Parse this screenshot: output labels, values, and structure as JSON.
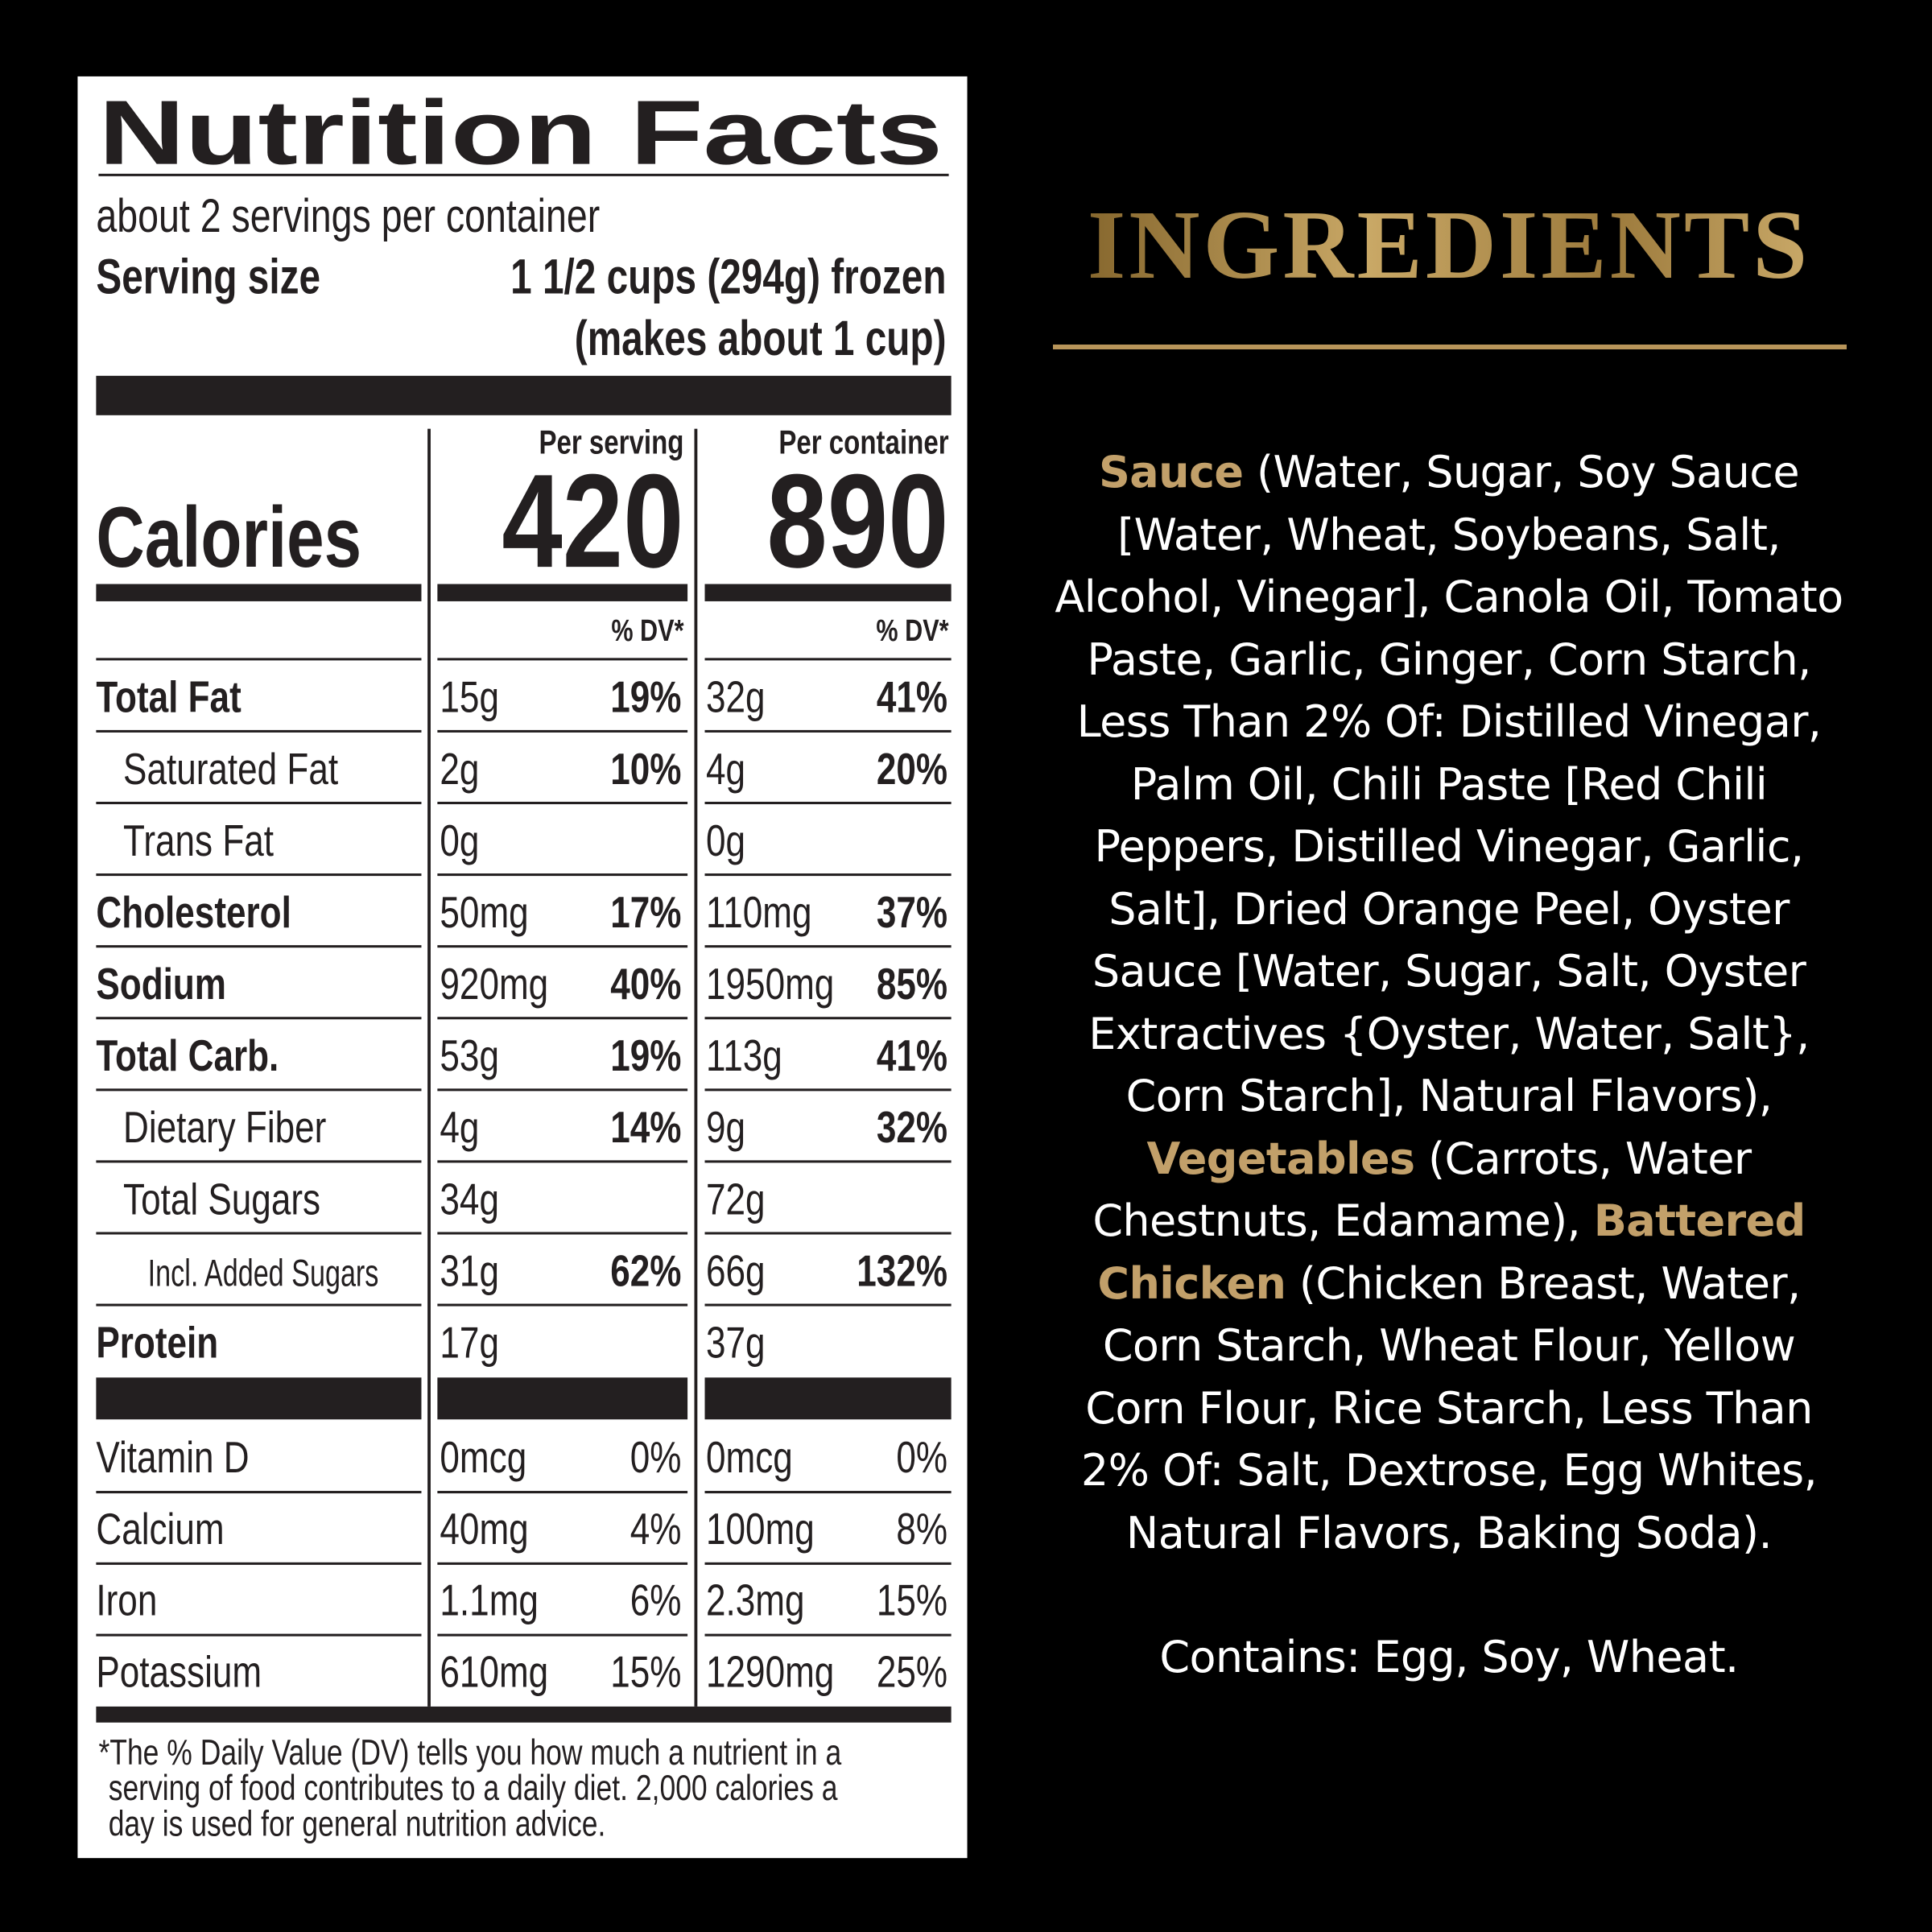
{
  "nutrition": {
    "title": "Nutrition Facts",
    "servings": "about 2 servings per container",
    "serving_size_label": "Serving size",
    "serving_size": "1 1/2 cups (294g) frozen",
    "serving_size_note": "(makes about 1 cup)",
    "columns": [
      "Per serving",
      "Per container"
    ],
    "calories_label": "Calories",
    "calories": [
      "420",
      "890"
    ],
    "dv_header": "% DV*",
    "rows": [
      {
        "label": "Total Fat",
        "bold": true,
        "indent": 0,
        "serving": {
          "amount": "15g",
          "dv": "19%"
        },
        "container": {
          "amount": "32g",
          "dv": "41%"
        }
      },
      {
        "label": "Saturated Fat",
        "bold": false,
        "indent": 1,
        "serving": {
          "amount": "2g",
          "dv": "10%"
        },
        "container": {
          "amount": "4g",
          "dv": "20%"
        }
      },
      {
        "label": "Trans Fat",
        "bold": false,
        "indent": 1,
        "serving": {
          "amount": "0g"
        },
        "container": {
          "amount": "0g"
        }
      },
      {
        "label": "Cholesterol",
        "bold": true,
        "indent": 0,
        "serving": {
          "amount": "50mg",
          "dv": "17%"
        },
        "container": {
          "amount": "110mg",
          "dv": "37%"
        }
      },
      {
        "label": "Sodium",
        "bold": true,
        "indent": 0,
        "serving": {
          "amount": "920mg",
          "dv": "40%"
        },
        "container": {
          "amount": "1950mg",
          "dv": "85%"
        }
      },
      {
        "label": "Total Carb.",
        "bold": true,
        "indent": 0,
        "serving": {
          "amount": "53g",
          "dv": "19%"
        },
        "container": {
          "amount": "113g",
          "dv": "41%"
        }
      },
      {
        "label": "Dietary Fiber",
        "bold": false,
        "indent": 1,
        "serving": {
          "amount": "4g",
          "dv": "14%"
        },
        "container": {
          "amount": "9g",
          "dv": "32%"
        }
      },
      {
        "label": "Total Sugars",
        "bold": false,
        "indent": 1,
        "serving": {
          "amount": "34g"
        },
        "container": {
          "amount": "72g"
        }
      },
      {
        "label": "Incl. Added Sugars",
        "bold": false,
        "indent": 2,
        "serving": {
          "amount": "31g",
          "dv": "62%"
        },
        "container": {
          "amount": "66g",
          "dv": "132%"
        }
      },
      {
        "label": "Protein",
        "bold": true,
        "indent": 0,
        "serving": {
          "amount": "17g"
        },
        "container": {
          "amount": "37g"
        }
      }
    ],
    "vitamins": [
      {
        "label": "Vitamin D",
        "serving": {
          "amount": "0mcg",
          "dv": "0%"
        },
        "container": {
          "amount": "0mcg",
          "dv": "0%"
        }
      },
      {
        "label": "Calcium",
        "serving": {
          "amount": "40mg",
          "dv": "4%"
        },
        "container": {
          "amount": "100mg",
          "dv": "8%"
        }
      },
      {
        "label": "Iron",
        "serving": {
          "amount": "1.1mg",
          "dv": "6%"
        },
        "container": {
          "amount": "2.3mg",
          "dv": "15%"
        }
      },
      {
        "label": "Potassium",
        "serving": {
          "amount": "610mg",
          "dv": "15%"
        },
        "container": {
          "amount": "1290mg",
          "dv": "25%"
        }
      }
    ],
    "footnote": [
      "*The % Daily Value (DV) tells you how much a nutrient in a",
      "serving of food contributes to a daily diet. 2,000 calories a",
      "day is used for general nutrition advice."
    ]
  },
  "ingredients": {
    "title": "INGREDIENTS",
    "segments": [
      {
        "text": "Sauce",
        "highlight": true
      },
      {
        "text": " (Water, Sugar, Soy Sauce [Water, Wheat, Soybeans, Salt, Alcohol, Vinegar], Canola Oil, Tomato Paste, Garlic, Ginger, Corn Starch, Less Than 2% Of: Distilled Vinegar, Palm Oil, Chili Paste [Red Chili Peppers, Distilled Vinegar, Garlic, Salt], Dried Orange Peel, Oyster Sauce [Water, Sugar, Salt, Oyster Extractives {Oyster, Water, Salt}, Corn Starch], Natural Flavors), "
      },
      {
        "text": "Vegetables",
        "highlight": true
      },
      {
        "text": " (Carrots, Water Chestnuts, Edamame), "
      },
      {
        "text": "Battered Chicken",
        "highlight": true
      },
      {
        "text": " (Chicken Breast, Water, Corn Starch, Wheat Flour, Yellow Corn Flour, Rice Starch, Less Than 2% Of: Salt, Dextrose, Egg Whites, Natural Flavors, Baking Soda)."
      }
    ],
    "contains": "Contains: Egg, Soy, Wheat."
  }
}
